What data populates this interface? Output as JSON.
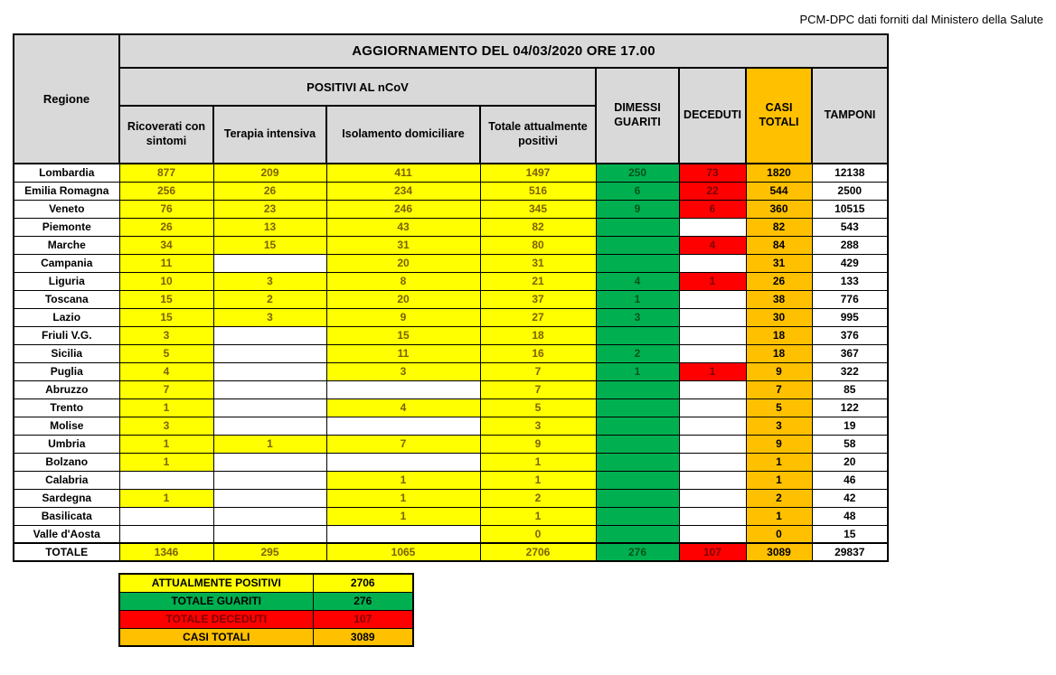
{
  "source_note": "PCM-DPC dati forniti dal Ministero della Salute",
  "table": {
    "title": "AGGIORNAMENTO DEL 04/03/2020 ORE 17.00",
    "region_header": "Regione",
    "group_header": "POSITIVI AL nCoV",
    "sub_headers": [
      "Ricoverati con sintomi",
      "Terapia intensiva",
      "Isolamento domiciliare",
      "Totale attualmente positivi"
    ],
    "right_headers": [
      "DIMESSI GUARITI",
      "DECEDUTI",
      "CASI TOTALI",
      "TAMPONI"
    ],
    "rows": [
      {
        "region": "Lombardia",
        "values": [
          "877",
          "209",
          "411",
          "1497",
          "250",
          "73",
          "1820",
          "12138"
        ]
      },
      {
        "region": "Emilia Romagna",
        "values": [
          "256",
          "26",
          "234",
          "516",
          "6",
          "22",
          "544",
          "2500"
        ]
      },
      {
        "region": "Veneto",
        "values": [
          "76",
          "23",
          "246",
          "345",
          "9",
          "6",
          "360",
          "10515"
        ]
      },
      {
        "region": "Piemonte",
        "values": [
          "26",
          "13",
          "43",
          "82",
          "",
          "",
          "82",
          "543"
        ]
      },
      {
        "region": "Marche",
        "values": [
          "34",
          "15",
          "31",
          "80",
          "",
          "4",
          "84",
          "288"
        ]
      },
      {
        "region": "Campania",
        "values": [
          "11",
          "",
          "20",
          "31",
          "",
          "",
          "31",
          "429"
        ]
      },
      {
        "region": "Liguria",
        "values": [
          "10",
          "3",
          "8",
          "21",
          "4",
          "1",
          "26",
          "133"
        ]
      },
      {
        "region": "Toscana",
        "values": [
          "15",
          "2",
          "20",
          "37",
          "1",
          "",
          "38",
          "776"
        ]
      },
      {
        "region": "Lazio",
        "values": [
          "15",
          "3",
          "9",
          "27",
          "3",
          "",
          "30",
          "995"
        ]
      },
      {
        "region": "Friuli V.G.",
        "values": [
          "3",
          "",
          "15",
          "18",
          "",
          "",
          "18",
          "376"
        ]
      },
      {
        "region": "Sicilia",
        "values": [
          "5",
          "",
          "11",
          "16",
          "2",
          "",
          "18",
          "367"
        ]
      },
      {
        "region": "Puglia",
        "values": [
          "4",
          "",
          "3",
          "7",
          "1",
          "1",
          "9",
          "322"
        ]
      },
      {
        "region": "Abruzzo",
        "values": [
          "7",
          "",
          "",
          "7",
          "",
          "",
          "7",
          "85"
        ]
      },
      {
        "region": "Trento",
        "values": [
          "1",
          "",
          "4",
          "5",
          "",
          "",
          "5",
          "122"
        ]
      },
      {
        "region": "Molise",
        "values": [
          "3",
          "",
          "",
          "3",
          "",
          "",
          "3",
          "19"
        ]
      },
      {
        "region": "Umbria",
        "values": [
          "1",
          "1",
          "7",
          "9",
          "",
          "",
          "9",
          "58"
        ]
      },
      {
        "region": "Bolzano",
        "values": [
          "1",
          "",
          "",
          "1",
          "",
          "",
          "1",
          "20"
        ]
      },
      {
        "region": "Calabria",
        "values": [
          "",
          "",
          "1",
          "1",
          "",
          "",
          "1",
          "46"
        ]
      },
      {
        "region": "Sardegna",
        "values": [
          "1",
          "",
          "1",
          "2",
          "",
          "",
          "2",
          "42"
        ]
      },
      {
        "region": "Basilicata",
        "values": [
          "",
          "",
          "1",
          "1",
          "",
          "",
          "1",
          "48"
        ]
      },
      {
        "region": "Valle d'Aosta",
        "values": [
          "",
          "",
          "",
          "0",
          "",
          "",
          "0",
          "15"
        ]
      }
    ],
    "total_row": {
      "region": "TOTALE",
      "values": [
        "1346",
        "295",
        "1065",
        "2706",
        "276",
        "107",
        "3089",
        "29837"
      ]
    }
  },
  "summary": {
    "rows": [
      {
        "label": "ATTUALMENTE POSITIVI",
        "value": "2706",
        "color": "yellow"
      },
      {
        "label": "TOTALE GUARITI",
        "value": "276",
        "color": "green"
      },
      {
        "label": "TOTALE DECEDUTI",
        "value": "107",
        "color": "red"
      },
      {
        "label": "CASI TOTALI",
        "value": "3089",
        "color": "orange"
      }
    ]
  },
  "colors": {
    "yellow": "#FFFF00",
    "green": "#00B050",
    "red": "#FF0000",
    "orange": "#FFC000",
    "header_grey": "#D9D9D9",
    "yellow_text": "#7F6000",
    "green_text": "#00541C",
    "red_text": "#7F0000"
  }
}
